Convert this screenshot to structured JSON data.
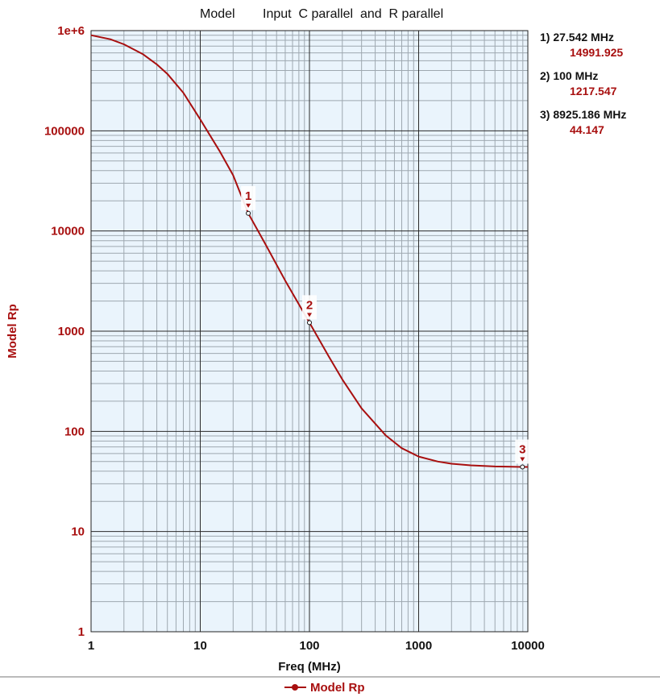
{
  "colors": {
    "series": "#a80f0f",
    "plot_bg": "#eaf4fc",
    "grid_major": "#2a2a2a",
    "grid_minor": "#9ea8b0",
    "text": "#111111"
  },
  "chart_data": {
    "type": "line",
    "title_parts": [
      "Model",
      "Input  C parallel  and  R parallel"
    ],
    "xlabel": "Freq (MHz)",
    "ylabel": "Model Rp",
    "xscale": "log",
    "yscale": "log",
    "xlim": [
      1,
      10000
    ],
    "ylim": [
      1,
      1000000
    ],
    "grid": true,
    "x_ticks": [
      "1",
      "10",
      "100",
      "1000",
      "10000"
    ],
    "y_ticks": [
      "1",
      "10",
      "100",
      "1000",
      "10000",
      "100000",
      "1e+6"
    ],
    "legend_position": "bottom-center",
    "series": [
      {
        "name": "Model Rp",
        "x": [
          1,
          1.5,
          2,
          3,
          4,
          5,
          7,
          10,
          15,
          20,
          27.542,
          40,
          60,
          100,
          150,
          200,
          300,
          500,
          700,
          1000,
          1500,
          2000,
          3000,
          5000,
          8925.186,
          10000
        ],
        "y": [
          900000,
          820000,
          730000,
          580000,
          460000,
          370000,
          240000,
          130000,
          63000,
          36000,
          14991.925,
          7200,
          3200,
          1217.547,
          560,
          330,
          170,
          91,
          68,
          56,
          50,
          47.5,
          45.8,
          44.6,
          44.147,
          44.1
        ]
      }
    ],
    "markers": [
      {
        "id": "1",
        "x": 27.542,
        "y": 14991.925,
        "freq_label": "1) 27.542 MHz",
        "value_label": "14991.925"
      },
      {
        "id": "2",
        "x": 100,
        "y": 1217.547,
        "freq_label": "2) 100 MHz",
        "value_label": "1217.547"
      },
      {
        "id": "3",
        "x": 8925.186,
        "y": 44.147,
        "freq_label": "3) 8925.186 MHz",
        "value_label": "44.147"
      }
    ]
  }
}
